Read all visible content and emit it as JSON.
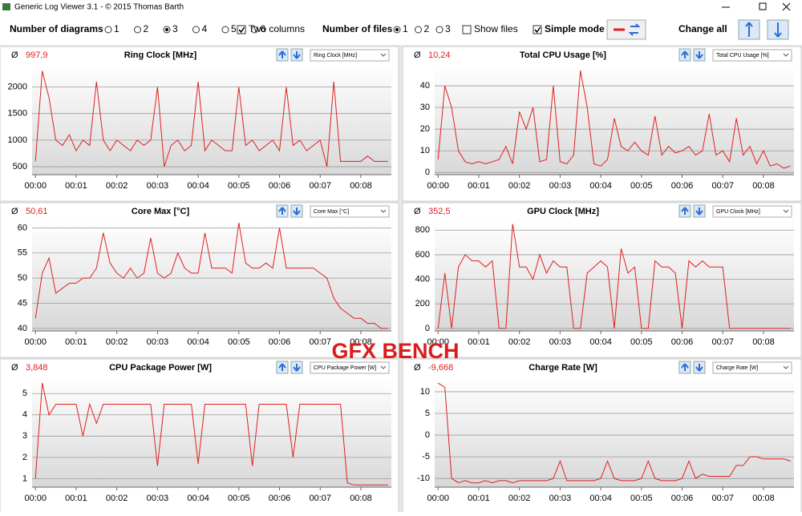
{
  "window": {
    "title": "Generic Log Viewer 3.1 - © 2015 Thomas Barth"
  },
  "toolbar": {
    "diagrams_label": "Number of diagrams",
    "diagram_options": [
      "1",
      "2",
      "3",
      "4",
      "5",
      "6"
    ],
    "diagram_selected": 2,
    "two_columns": {
      "label": "Two columns",
      "checked": true
    },
    "files_label": "Number of files",
    "file_options": [
      "1",
      "2",
      "3"
    ],
    "file_selected": 0,
    "show_files": {
      "label": "Show files",
      "checked": false
    },
    "simple_mode": {
      "label": "Simple mode",
      "checked": true
    },
    "change_all": "Change all"
  },
  "overlay": "GFX BENCH",
  "avg_symbol": "Ø",
  "chart_data": [
    {
      "type": "line",
      "title": "Ring Clock [MHz]",
      "average": "997,9",
      "color": "#e02020",
      "grid": true,
      "x": [
        0,
        10,
        20,
        30,
        40,
        50,
        60,
        70,
        80,
        90,
        100,
        110,
        120,
        130,
        140,
        150,
        160,
        170,
        180,
        190,
        200,
        210,
        220,
        230,
        240,
        250,
        260,
        270,
        280,
        290,
        300,
        310,
        320,
        330,
        340,
        350,
        360,
        370,
        380,
        390,
        400,
        410,
        420,
        430,
        440,
        450,
        460,
        470,
        480,
        490,
        500,
        510,
        520
      ],
      "values": [
        600,
        2300,
        1800,
        1000,
        900,
        1100,
        800,
        1000,
        900,
        2100,
        1000,
        800,
        1000,
        900,
        800,
        1000,
        900,
        1000,
        2000,
        500,
        900,
        1000,
        800,
        900,
        2100,
        800,
        1000,
        900,
        800,
        800,
        2000,
        900,
        1000,
        800,
        900,
        1000,
        800,
        2000,
        900,
        1000,
        800,
        900,
        1000,
        500,
        2100,
        600,
        600,
        600,
        600,
        700,
        600,
        600,
        600
      ],
      "xlim": [
        -5,
        525
      ],
      "xticks": [
        {
          "value": 0,
          "label": "00:00"
        },
        {
          "value": 60,
          "label": "00:01"
        },
        {
          "value": 120,
          "label": "00:02"
        },
        {
          "value": 180,
          "label": "00:03"
        },
        {
          "value": 240,
          "label": "00:04"
        },
        {
          "value": 300,
          "label": "00:05"
        },
        {
          "value": 360,
          "label": "00:06"
        },
        {
          "value": 420,
          "label": "00:07"
        },
        {
          "value": 480,
          "label": "00:08"
        }
      ],
      "ylim": [
        350,
        2430
      ],
      "yticks": [
        500,
        1000,
        1500,
        2000
      ]
    },
    {
      "type": "line",
      "title": "Total CPU Usage [%]",
      "average": "10,24",
      "color": "#e02020",
      "grid": true,
      "x": [
        0,
        10,
        20,
        30,
        40,
        50,
        60,
        70,
        80,
        90,
        100,
        110,
        120,
        130,
        140,
        150,
        160,
        170,
        180,
        190,
        200,
        210,
        220,
        230,
        240,
        250,
        260,
        270,
        280,
        290,
        300,
        310,
        320,
        330,
        340,
        350,
        360,
        370,
        380,
        390,
        400,
        410,
        420,
        430,
        440,
        450,
        460,
        470,
        480,
        490,
        500,
        510,
        520
      ],
      "values": [
        6,
        40,
        30,
        10,
        5,
        4,
        5,
        4,
        5,
        6,
        12,
        4,
        28,
        20,
        30,
        5,
        6,
        40,
        5,
        4,
        8,
        47,
        30,
        4,
        3,
        6,
        25,
        12,
        10,
        14,
        10,
        8,
        26,
        8,
        12,
        9,
        10,
        12,
        8,
        10,
        27,
        8,
        10,
        5,
        25,
        8,
        12,
        4,
        10,
        3,
        4,
        2,
        3
      ],
      "xlim": [
        -5,
        525
      ],
      "xticks": [
        {
          "value": 0,
          "label": "00:00"
        },
        {
          "value": 60,
          "label": "00:01"
        },
        {
          "value": 120,
          "label": "00:02"
        },
        {
          "value": 180,
          "label": "00:03"
        },
        {
          "value": 240,
          "label": "00:04"
        },
        {
          "value": 300,
          "label": "00:05"
        },
        {
          "value": 360,
          "label": "00:06"
        },
        {
          "value": 420,
          "label": "00:07"
        },
        {
          "value": 480,
          "label": "00:08"
        }
      ],
      "ylim": [
        -1,
        50
      ],
      "yticks": [
        0,
        10,
        20,
        30,
        40
      ]
    },
    {
      "type": "line",
      "title": "Core Max [°C]",
      "average": "50,61",
      "color": "#e02020",
      "grid": true,
      "x": [
        0,
        10,
        20,
        30,
        40,
        50,
        60,
        70,
        80,
        90,
        100,
        110,
        120,
        130,
        140,
        150,
        160,
        170,
        180,
        190,
        200,
        210,
        220,
        230,
        240,
        250,
        260,
        270,
        280,
        290,
        300,
        310,
        320,
        330,
        340,
        350,
        360,
        370,
        380,
        390,
        400,
        410,
        420,
        430,
        440,
        450,
        460,
        470,
        480,
        490,
        500,
        510,
        520
      ],
      "values": [
        42,
        51,
        54,
        47,
        48,
        49,
        49,
        50,
        50,
        52,
        59,
        53,
        51,
        50,
        52,
        50,
        51,
        58,
        51,
        50,
        51,
        55,
        52,
        51,
        51,
        59,
        52,
        52,
        52,
        51,
        61,
        53,
        52,
        52,
        53,
        52,
        60,
        52,
        52,
        52,
        52,
        52,
        51,
        50,
        46,
        44,
        43,
        42,
        42,
        41,
        41,
        40,
        40
      ],
      "xlim": [
        -5,
        525
      ],
      "xticks": [
        {
          "value": 0,
          "label": "00:00"
        },
        {
          "value": 60,
          "label": "00:01"
        },
        {
          "value": 120,
          "label": "00:02"
        },
        {
          "value": 180,
          "label": "00:03"
        },
        {
          "value": 240,
          "label": "00:04"
        },
        {
          "value": 300,
          "label": "00:05"
        },
        {
          "value": 360,
          "label": "00:06"
        },
        {
          "value": 420,
          "label": "00:07"
        },
        {
          "value": 480,
          "label": "00:08"
        }
      ],
      "ylim": [
        39.5,
        61.5
      ],
      "yticks": [
        40,
        45,
        50,
        55,
        60
      ]
    },
    {
      "type": "line",
      "title": "GPU Clock [MHz]",
      "average": "352,5",
      "color": "#e02020",
      "grid": true,
      "x": [
        0,
        10,
        20,
        30,
        40,
        50,
        60,
        70,
        80,
        90,
        100,
        110,
        120,
        130,
        140,
        150,
        160,
        170,
        180,
        190,
        200,
        210,
        220,
        230,
        240,
        250,
        260,
        270,
        280,
        290,
        300,
        310,
        320,
        330,
        340,
        350,
        360,
        370,
        380,
        390,
        400,
        410,
        420,
        430,
        440,
        450,
        460,
        470,
        480,
        490,
        500,
        510,
        520
      ],
      "values": [
        0,
        450,
        0,
        500,
        600,
        550,
        550,
        500,
        550,
        0,
        0,
        850,
        500,
        500,
        400,
        600,
        450,
        550,
        500,
        500,
        0,
        0,
        450,
        500,
        550,
        500,
        0,
        650,
        450,
        500,
        0,
        0,
        550,
        500,
        500,
        450,
        0,
        550,
        500,
        550,
        500,
        500,
        500,
        0,
        0,
        0,
        0,
        0,
        0,
        0,
        0,
        0,
        0
      ],
      "xlim": [
        -5,
        525
      ],
      "xticks": [
        {
          "value": 0,
          "label": "00:00"
        },
        {
          "value": 60,
          "label": "00:01"
        },
        {
          "value": 120,
          "label": "00:02"
        },
        {
          "value": 180,
          "label": "00:03"
        },
        {
          "value": 240,
          "label": "00:04"
        },
        {
          "value": 300,
          "label": "00:05"
        },
        {
          "value": 360,
          "label": "00:06"
        },
        {
          "value": 420,
          "label": "00:07"
        },
        {
          "value": 480,
          "label": "00:08"
        }
      ],
      "ylim": [
        -20,
        880
      ],
      "yticks": [
        0,
        200,
        400,
        600,
        800
      ]
    },
    {
      "type": "line",
      "title": "CPU Package Power [W]",
      "average": "3,848",
      "color": "#e02020",
      "grid": true,
      "x": [
        0,
        10,
        20,
        30,
        40,
        50,
        60,
        70,
        80,
        90,
        100,
        110,
        120,
        130,
        140,
        150,
        160,
        170,
        180,
        190,
        200,
        210,
        220,
        230,
        240,
        250,
        260,
        270,
        280,
        290,
        300,
        310,
        320,
        330,
        340,
        350,
        360,
        370,
        380,
        390,
        400,
        410,
        420,
        430,
        440,
        450,
        460,
        470,
        480,
        490,
        500,
        510,
        520
      ],
      "values": [
        1,
        5.5,
        4,
        4.5,
        4.5,
        4.5,
        4.5,
        3,
        4.5,
        3.6,
        4.5,
        4.5,
        4.5,
        4.5,
        4.5,
        4.5,
        4.5,
        4.5,
        1.6,
        4.5,
        4.5,
        4.5,
        4.5,
        4.5,
        1.7,
        4.5,
        4.5,
        4.5,
        4.5,
        4.5,
        4.5,
        4.5,
        1.6,
        4.5,
        4.5,
        4.5,
        4.5,
        4.5,
        2,
        4.5,
        4.5,
        4.5,
        4.5,
        4.5,
        4.5,
        4.5,
        0.8,
        0.7,
        0.7,
        0.7,
        0.7,
        0.7,
        0.7
      ],
      "xlim": [
        -5,
        525
      ],
      "xticks": [
        {
          "value": 0,
          "label": "00:00"
        },
        {
          "value": 60,
          "label": "00:01"
        },
        {
          "value": 120,
          "label": "00:02"
        },
        {
          "value": 180,
          "label": "00:03"
        },
        {
          "value": 240,
          "label": "00:04"
        },
        {
          "value": 300,
          "label": "00:05"
        },
        {
          "value": 360,
          "label": "00:06"
        },
        {
          "value": 420,
          "label": "00:07"
        },
        {
          "value": 480,
          "label": "00:08"
        }
      ],
      "ylim": [
        0.6,
        5.8
      ],
      "yticks": [
        1,
        2,
        3,
        4,
        5
      ]
    },
    {
      "type": "line",
      "title": "Charge Rate [W]",
      "average": "-9,668",
      "color": "#e02020",
      "grid": true,
      "x": [
        0,
        10,
        20,
        30,
        40,
        50,
        60,
        70,
        80,
        90,
        100,
        110,
        120,
        130,
        140,
        150,
        160,
        170,
        180,
        190,
        200,
        210,
        220,
        230,
        240,
        250,
        260,
        270,
        280,
        290,
        300,
        310,
        320,
        330,
        340,
        350,
        360,
        370,
        380,
        390,
        400,
        410,
        420,
        430,
        440,
        450,
        460,
        470,
        480,
        490,
        500,
        510,
        520
      ],
      "values": [
        12,
        11,
        -10,
        -11,
        -10.5,
        -11,
        -11,
        -10.5,
        -11,
        -10.5,
        -10.5,
        -11,
        -10.5,
        -10.5,
        -10.5,
        -10.5,
        -10.5,
        -10,
        -6,
        -10.5,
        -10.5,
        -10.5,
        -10.5,
        -10.5,
        -10,
        -6,
        -10,
        -10.5,
        -10.5,
        -10.5,
        -10,
        -6,
        -10,
        -10.5,
        -10.5,
        -10.5,
        -10,
        -6,
        -10,
        -9,
        -9.5,
        -9.5,
        -9.5,
        -9.5,
        -7,
        -7,
        -5,
        -5,
        -5.5,
        -5.5,
        -5.5,
        -5.5,
        -6
      ],
      "xlim": [
        -5,
        525
      ],
      "xticks": [
        {
          "value": 0,
          "label": "00:00"
        },
        {
          "value": 60,
          "label": "00:01"
        },
        {
          "value": 120,
          "label": "00:02"
        },
        {
          "value": 180,
          "label": "00:03"
        },
        {
          "value": 240,
          "label": "00:04"
        },
        {
          "value": 300,
          "label": "00:05"
        },
        {
          "value": 360,
          "label": "00:06"
        },
        {
          "value": 420,
          "label": "00:07"
        },
        {
          "value": 480,
          "label": "00:08"
        }
      ],
      "ylim": [
        -12,
        13.5
      ],
      "yticks": [
        -10,
        -5,
        0,
        5,
        10
      ]
    }
  ]
}
